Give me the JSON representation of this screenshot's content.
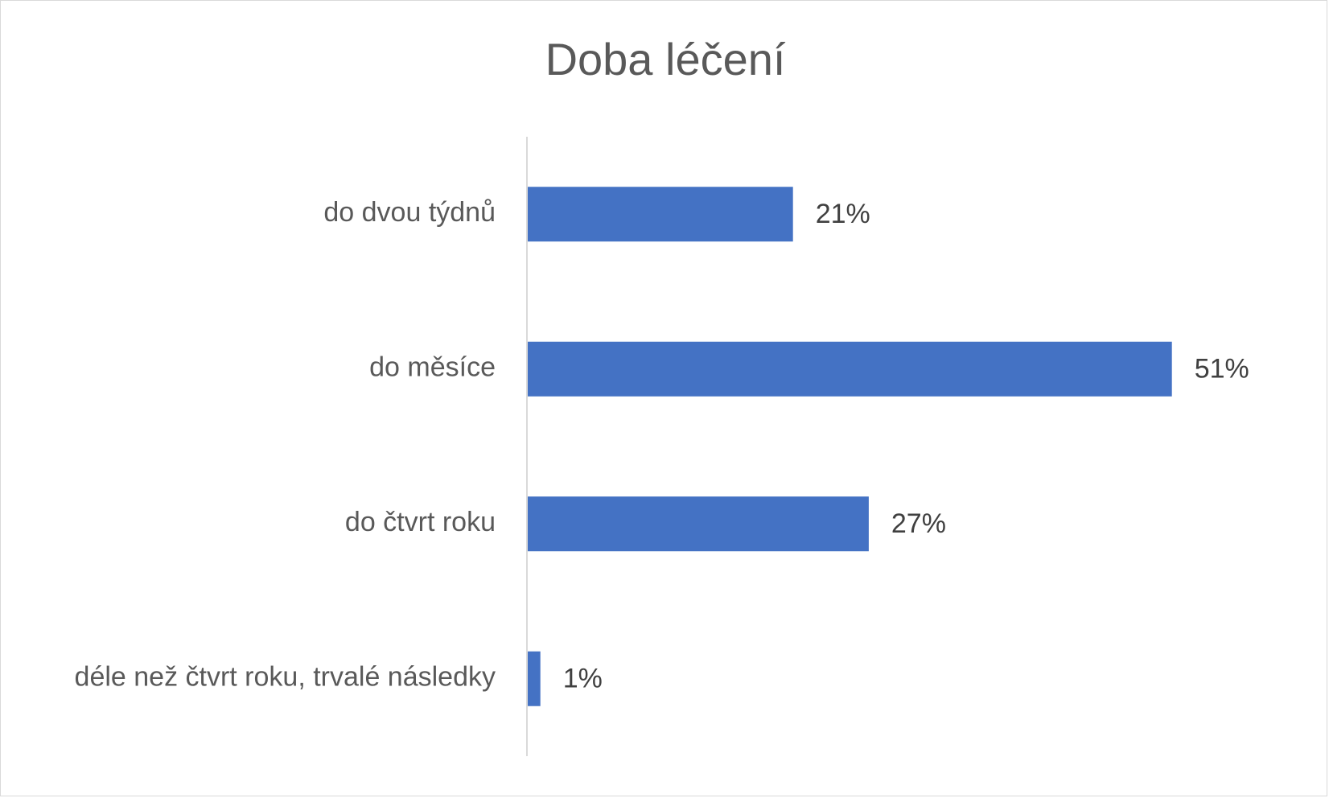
{
  "chart_data": {
    "type": "bar",
    "orientation": "horizontal",
    "title": "Doba léčení",
    "xlabel": "",
    "ylabel": "",
    "categories": [
      "do dvou týdnů",
      "do měsíce",
      "do čtvrt roku",
      "déle než čtvrt roku, trvalé následky"
    ],
    "values": [
      21,
      51,
      27,
      1
    ],
    "value_labels": [
      "21%",
      "51%",
      "27%",
      "1%"
    ],
    "xlim": [
      0,
      60
    ],
    "grid": false,
    "legend": "none",
    "bar_color": "#4472c4"
  }
}
